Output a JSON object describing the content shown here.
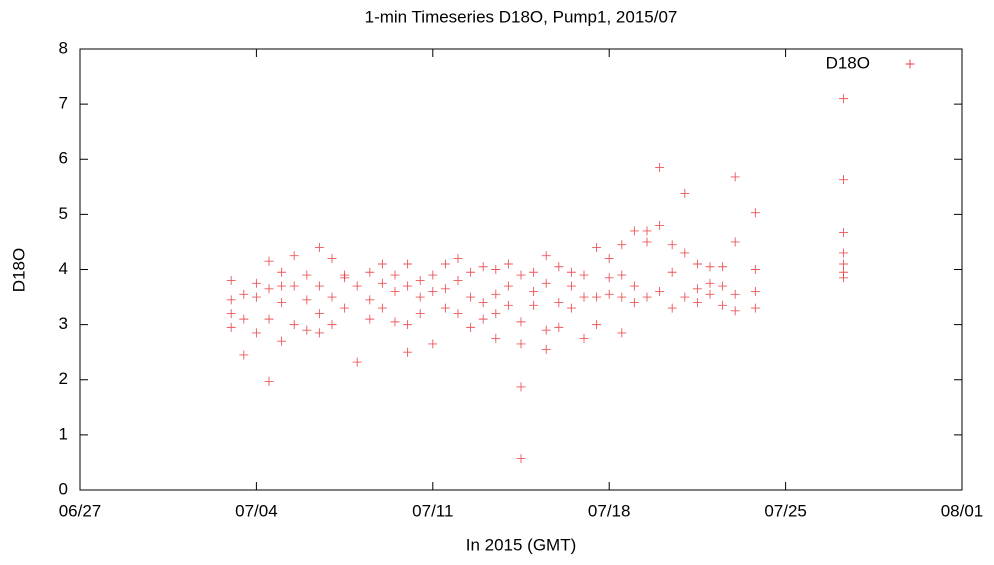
{
  "chart_data": {
    "type": "scatter",
    "title": "1-min Timeseries D18O, Pump1, 2015/07",
    "x_label": "In 2015 (GMT)",
    "y_label": "D18O",
    "xlim": [
      0,
      35
    ],
    "xticks": [
      {
        "value": 0,
        "label": "06/27"
      },
      {
        "value": 7,
        "label": "07/04"
      },
      {
        "value": 14,
        "label": "07/11"
      },
      {
        "value": 21,
        "label": "07/18"
      },
      {
        "value": 28,
        "label": "07/25"
      },
      {
        "value": 35,
        "label": "08/01"
      }
    ],
    "ylim": [
      0,
      8
    ],
    "yticks": [
      0,
      1,
      2,
      3,
      4,
      5,
      6,
      7,
      8
    ],
    "legend": "top-right",
    "x": [
      6.0,
      6.0,
      6.0,
      6.0,
      6.5,
      6.5,
      6.5,
      7.0,
      7.0,
      7.0,
      7.5,
      7.5,
      7.5,
      7.5,
      8.0,
      8.0,
      8.0,
      8.0,
      8.5,
      8.5,
      8.5,
      9.0,
      9.0,
      9.0,
      9.5,
      9.5,
      9.5,
      9.5,
      10.0,
      10.0,
      10.0,
      10.5,
      10.5,
      10.5,
      11.0,
      11.0,
      11.5,
      11.5,
      11.5,
      12.0,
      12.0,
      12.0,
      12.5,
      12.5,
      12.5,
      13.0,
      13.0,
      13.0,
      13.0,
      13.5,
      13.5,
      13.5,
      14.0,
      14.0,
      14.0,
      14.5,
      14.5,
      14.5,
      15.0,
      15.0,
      15.0,
      15.5,
      15.5,
      15.5,
      16.0,
      16.0,
      16.0,
      16.5,
      16.5,
      16.5,
      16.5,
      17.0,
      17.0,
      17.0,
      17.5,
      17.5,
      17.5,
      17.5,
      17.5,
      18.0,
      18.0,
      18.0,
      18.5,
      18.5,
      18.5,
      18.5,
      19.0,
      19.0,
      19.0,
      19.5,
      19.5,
      19.5,
      20.0,
      20.0,
      20.0,
      20.5,
      20.5,
      20.5,
      21.0,
      21.0,
      21.0,
      21.5,
      21.5,
      21.5,
      21.5,
      22.0,
      22.0,
      22.0,
      22.5,
      22.5,
      22.5,
      23.0,
      23.0,
      23.0,
      23.5,
      23.5,
      23.5,
      24.0,
      24.0,
      24.0,
      24.5,
      24.5,
      24.5,
      25.0,
      25.0,
      25.0,
      25.5,
      25.5,
      25.5,
      26.0,
      26.0,
      26.0,
      26.0,
      26.8,
      26.8,
      26.8,
      26.8,
      30.3,
      30.3,
      30.3,
      30.3,
      30.3,
      30.3,
      30.3
    ],
    "series": [
      {
        "name": "D18O",
        "color": "#e8383d",
        "values": [
          3.8,
          3.45,
          3.2,
          2.95,
          3.55,
          3.1,
          2.45,
          3.75,
          3.5,
          2.85,
          4.15,
          3.65,
          3.1,
          1.97,
          3.95,
          3.7,
          3.4,
          2.7,
          4.25,
          3.7,
          3.0,
          3.9,
          3.45,
          2.9,
          4.4,
          3.7,
          3.2,
          2.85,
          4.2,
          3.5,
          3.0,
          3.9,
          3.85,
          3.3,
          3.7,
          2.32,
          3.95,
          3.45,
          3.1,
          4.1,
          3.75,
          3.3,
          3.9,
          3.6,
          3.05,
          4.1,
          3.7,
          3.0,
          2.5,
          3.8,
          3.5,
          3.2,
          3.9,
          3.6,
          2.65,
          4.1,
          3.65,
          3.3,
          4.2,
          3.8,
          3.2,
          3.95,
          3.5,
          2.95,
          4.05,
          3.4,
          3.1,
          4.0,
          3.55,
          3.2,
          2.75,
          4.1,
          3.7,
          3.35,
          3.9,
          3.05,
          2.65,
          1.87,
          0.57,
          3.95,
          3.6,
          3.35,
          4.25,
          3.75,
          2.9,
          2.55,
          4.05,
          3.4,
          2.95,
          3.95,
          3.7,
          3.3,
          3.9,
          3.5,
          2.75,
          4.4,
          3.5,
          3.0,
          4.2,
          3.85,
          3.55,
          4.45,
          3.9,
          3.5,
          2.85,
          4.7,
          3.7,
          3.4,
          4.7,
          4.5,
          3.5,
          5.85,
          4.8,
          3.6,
          4.45,
          3.95,
          3.3,
          5.38,
          4.3,
          3.5,
          4.1,
          3.65,
          3.4,
          4.05,
          3.75,
          3.55,
          4.05,
          3.7,
          3.35,
          5.68,
          4.5,
          3.55,
          3.25,
          5.03,
          4.0,
          3.6,
          3.3,
          7.1,
          5.63,
          4.67,
          4.3,
          4.1,
          3.95,
          3.85
        ]
      }
    ]
  }
}
